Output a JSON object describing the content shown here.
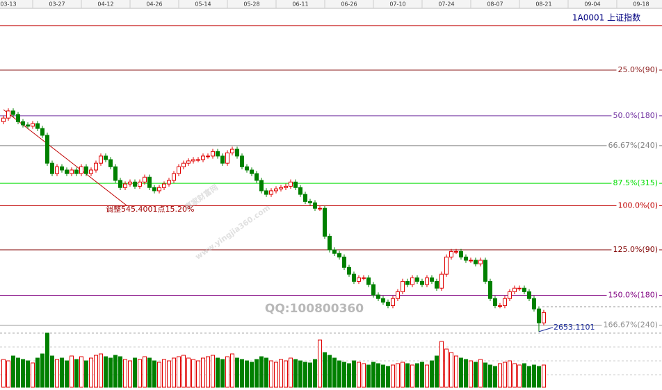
{
  "chart_data": {
    "type": "candlestick",
    "instrument": "1A0001  上证指数",
    "watermark": "赢家财富网",
    "watermark_url": "www.yingjia360.com",
    "watermark_qq": "QQ:100800360",
    "annotation": "调整545.4001点15.20%",
    "up_color": "#e00000",
    "down_color": "#008000",
    "xlim": [
      -0.714,
      135.29
    ],
    "ylim": [
      2640,
      3600
    ],
    "vlim": [
      0,
      80
    ],
    "xticks": [
      {
        "value": 1,
        "label": "03-13"
      },
      {
        "value": 11,
        "label": "03-27"
      },
      {
        "value": 21,
        "label": "04-12"
      },
      {
        "value": 31,
        "label": "04-26"
      },
      {
        "value": 41,
        "label": "05-14"
      },
      {
        "value": 51,
        "label": "05-28"
      },
      {
        "value": 61,
        "label": "06-11"
      },
      {
        "value": 71,
        "label": "06-26"
      },
      {
        "value": 81,
        "label": "07-10"
      },
      {
        "value": 91,
        "label": "07-24"
      },
      {
        "value": 101,
        "label": "08-07"
      },
      {
        "value": 111,
        "label": "08-21"
      },
      {
        "value": 121,
        "label": "09-04"
      },
      {
        "value": 131,
        "label": "09-18"
      }
    ],
    "levels": [
      {
        "value": 3596,
        "label": null,
        "color": "#c00000"
      },
      {
        "value": 3459,
        "label": "25.0%(90)",
        "color": "#8b1a1a"
      },
      {
        "value": 3318,
        "label": "50.0%(180)",
        "color": "#7030a0"
      },
      {
        "value": 3226,
        "label": "66.67%(240)",
        "color": "#808080"
      },
      {
        "value": 3110,
        "label": "87.5%(315)",
        "color": "#00dd00"
      },
      {
        "value": 3041,
        "label": "100.0%(0)",
        "color": "#c00000"
      },
      {
        "value": 2905,
        "label": "125.0%(90)",
        "color": "#800000"
      },
      {
        "value": 2765,
        "label": "150.0%(180)",
        "color": "#800080"
      },
      {
        "value": 2673,
        "label": "166.67%(240)",
        "color": "#909090"
      }
    ],
    "open": [
      3300,
      3311,
      3333,
      3322,
      3300,
      3290,
      3286,
      3294,
      3279,
      3258,
      3172,
      3140,
      3161,
      3151,
      3140,
      3151,
      3140,
      3161,
      3140,
      3151,
      3172,
      3194,
      3183,
      3161,
      3119,
      3097,
      3108,
      3114,
      3101,
      3114,
      3129,
      3097,
      3087,
      3097,
      3108,
      3119,
      3140,
      3161,
      3172,
      3179,
      3183,
      3183,
      3194,
      3194,
      3208,
      3194,
      3172,
      3204,
      3215,
      3194,
      3161,
      3151,
      3140,
      3119,
      3087,
      3076,
      3087,
      3093,
      3097,
      3101,
      3114,
      3097,
      3076,
      3054,
      3050,
      3033,
      3033,
      2947,
      2905,
      2894,
      2883,
      2851,
      2830,
      2808,
      2819,
      2819,
      2798,
      2766,
      2755,
      2744,
      2733,
      2755,
      2776,
      2808,
      2798,
      2819,
      2808,
      2798,
      2819,
      2808,
      2787,
      2830,
      2883,
      2900,
      2900,
      2883,
      2873,
      2873,
      2862,
      2873,
      2808,
      2755,
      2733,
      2733,
      2755,
      2776,
      2787,
      2787,
      2776,
      2755,
      2723,
      2680
    ],
    "high": [
      3319,
      3341,
      3341,
      3330,
      3308,
      3298,
      3302,
      3302,
      3287,
      3266,
      3180,
      3169,
      3169,
      3159,
      3159,
      3159,
      3169,
      3169,
      3159,
      3180,
      3202,
      3202,
      3191,
      3169,
      3127,
      3116,
      3122,
      3122,
      3122,
      3137,
      3137,
      3105,
      3105,
      3116,
      3127,
      3148,
      3169,
      3180,
      3187,
      3191,
      3191,
      3202,
      3202,
      3216,
      3216,
      3202,
      3212,
      3223,
      3223,
      3202,
      3169,
      3159,
      3148,
      3127,
      3095,
      3095,
      3101,
      3105,
      3109,
      3122,
      3122,
      3105,
      3084,
      3062,
      3058,
      3041,
      3041,
      2955,
      2913,
      2902,
      2891,
      2859,
      2838,
      2827,
      2827,
      2827,
      2806,
      2774,
      2763,
      2752,
      2763,
      2784,
      2816,
      2816,
      2827,
      2827,
      2816,
      2827,
      2827,
      2816,
      2838,
      2891,
      2908,
      2908,
      2908,
      2891,
      2881,
      2881,
      2881,
      2881,
      2816,
      2763,
      2741,
      2763,
      2784,
      2795,
      2795,
      2795,
      2784,
      2763,
      2731,
      2720
    ],
    "low": [
      3292,
      3303,
      3314,
      3292,
      3282,
      3278,
      3278,
      3271,
      3250,
      3164,
      3132,
      3132,
      3143,
      3132,
      3132,
      3132,
      3132,
      3132,
      3132,
      3143,
      3164,
      3175,
      3153,
      3111,
      3089,
      3089,
      3100,
      3093,
      3093,
      3106,
      3089,
      3079,
      3079,
      3089,
      3100,
      3111,
      3132,
      3153,
      3164,
      3171,
      3175,
      3175,
      3186,
      3186,
      3186,
      3164,
      3164,
      3196,
      3186,
      3153,
      3143,
      3132,
      3111,
      3079,
      3068,
      3068,
      3079,
      3085,
      3089,
      3093,
      3089,
      3068,
      3046,
      3042,
      3025,
      3025,
      2939,
      2897,
      2886,
      2875,
      2843,
      2822,
      2800,
      2800,
      2811,
      2790,
      2758,
      2747,
      2736,
      2725,
      2725,
      2747,
      2768,
      2790,
      2790,
      2800,
      2790,
      2790,
      2800,
      2779,
      2779,
      2822,
      2875,
      2892,
      2875,
      2865,
      2865,
      2854,
      2854,
      2800,
      2747,
      2725,
      2725,
      2725,
      2747,
      2768,
      2779,
      2768,
      2747,
      2715,
      2653.1101,
      2672
    ],
    "close": [
      3311,
      3333,
      3322,
      3300,
      3290,
      3286,
      3294,
      3279,
      3258,
      3172,
      3140,
      3161,
      3151,
      3140,
      3151,
      3140,
      3161,
      3140,
      3151,
      3172,
      3194,
      3183,
      3161,
      3119,
      3097,
      3108,
      3114,
      3101,
      3114,
      3129,
      3097,
      3087,
      3097,
      3108,
      3119,
      3140,
      3161,
      3172,
      3179,
      3183,
      3183,
      3194,
      3194,
      3208,
      3194,
      3172,
      3204,
      3215,
      3194,
      3161,
      3151,
      3140,
      3119,
      3087,
      3076,
      3087,
      3093,
      3097,
      3101,
      3114,
      3097,
      3076,
      3054,
      3050,
      3033,
      3033,
      2947,
      2905,
      2894,
      2883,
      2851,
      2830,
      2808,
      2819,
      2819,
      2798,
      2766,
      2755,
      2744,
      2733,
      2755,
      2776,
      2808,
      2798,
      2819,
      2808,
      2798,
      2819,
      2808,
      2787,
      2830,
      2883,
      2900,
      2900,
      2883,
      2873,
      2873,
      2862,
      2873,
      2808,
      2755,
      2733,
      2733,
      2755,
      2776,
      2787,
      2787,
      2776,
      2755,
      2723,
      2680,
      2712
    ],
    "volume": [
      40,
      38,
      45,
      42,
      40,
      38,
      35,
      42,
      48,
      78,
      45,
      40,
      42,
      38,
      45,
      40,
      44,
      38,
      42,
      46,
      48,
      44,
      42,
      46,
      44,
      40,
      38,
      42,
      40,
      44,
      42,
      38,
      36,
      40,
      38,
      42,
      44,
      46,
      42,
      40,
      38,
      42,
      44,
      46,
      42,
      40,
      44,
      48,
      42,
      40,
      38,
      36,
      40,
      44,
      42,
      38,
      36,
      40,
      38,
      42,
      40,
      38,
      36,
      35,
      40,
      68,
      50,
      46,
      42,
      38,
      36,
      34,
      38,
      36,
      34,
      32,
      36,
      34,
      32,
      30,
      32,
      34,
      36,
      34,
      32,
      34,
      36,
      32,
      38,
      45,
      66,
      55,
      50,
      45,
      42,
      40,
      38,
      36,
      40,
      35,
      32,
      30,
      34,
      36,
      38,
      34,
      32,
      34,
      30,
      32,
      30,
      32
    ]
  }
}
